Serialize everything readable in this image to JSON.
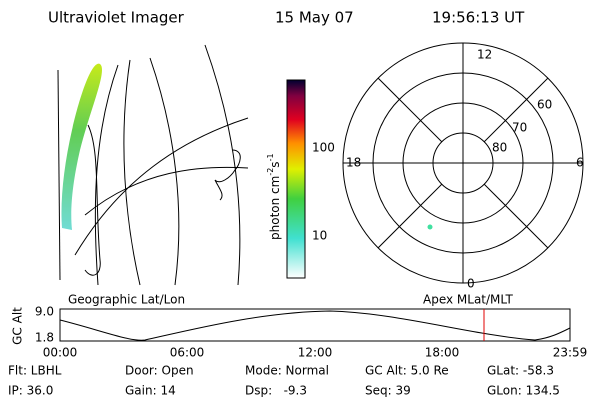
{
  "header": {
    "instrument": "Ultraviolet Imager",
    "date": "15 May 07",
    "time": "19:56:13 UT"
  },
  "colorbar": {
    "label": "photon cm",
    "exp1": "-2",
    "mid": "s",
    "exp2": "-1",
    "ticks": [
      "100",
      "10"
    ]
  },
  "polar": {
    "mlt_labels": [
      "12",
      "18",
      "6",
      "0"
    ],
    "lat_labels": [
      "60",
      "70",
      "80"
    ]
  },
  "timeline": {
    "left_title": "Geographic Lat/Lon",
    "right_title": "Apex MLat/MLT",
    "axis_label": "GC Alt",
    "y_labels": [
      "9.0",
      "1.8"
    ],
    "x_labels": [
      "00:00",
      "06:00",
      "12:00",
      "18:00",
      "23:59"
    ]
  },
  "info": {
    "rows": [
      [
        "Flt: LBHL",
        "Door: Open",
        "Mode: Normal",
        "GC Alt: 5.0 Re",
        "GLat: -58.3"
      ],
      [
        "IP: 36.0",
        "Gain: 14",
        "Dsp:   -9.3",
        "Seq: 39",
        "GLon: 134.5"
      ]
    ]
  }
}
